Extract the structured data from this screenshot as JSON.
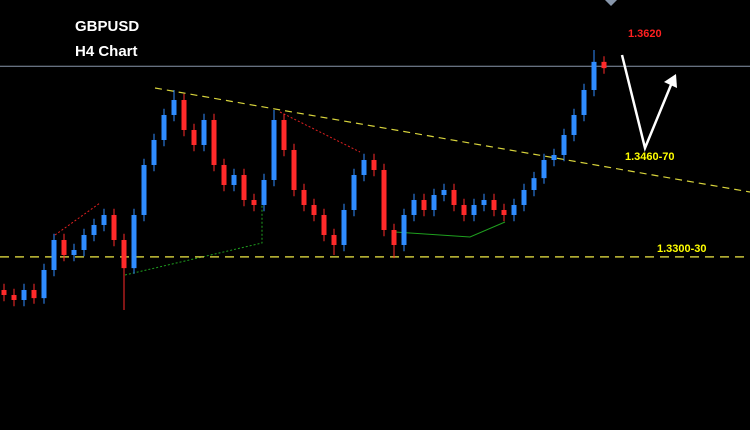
{
  "chart_data": {
    "type": "candlestick",
    "title": "GBPUSD",
    "subtitle": "H4 Chart",
    "ylim": [
      1.3038,
      1.3726
    ],
    "up_color": "#2f8cff",
    "down_color": "#ff2a2a",
    "open": [
      1.3262,
      1.3254,
      1.3246,
      1.3262,
      1.3249,
      1.3294,
      1.3342,
      1.3318,
      1.3326,
      1.335,
      1.3366,
      1.3382,
      1.3342,
      1.3297,
      1.3382,
      1.3462,
      1.3502,
      1.3542,
      1.3566,
      1.3518,
      1.3494,
      1.3534,
      1.3462,
      1.343,
      1.3446,
      1.3406,
      1.3398,
      1.3438,
      1.3534,
      1.3486,
      1.3422,
      1.3398,
      1.3382,
      1.335,
      1.3334,
      1.339,
      1.3446,
      1.347,
      1.3454,
      1.3358,
      1.3334,
      1.3382,
      1.3406,
      1.339,
      1.3414,
      1.3422,
      1.3398,
      1.3382,
      1.3398,
      1.3406,
      1.339,
      1.3382,
      1.3398,
      1.3422,
      1.3441,
      1.347,
      1.3478,
      1.351,
      1.3542,
      1.3582,
      1.3627
    ],
    "high": [
      1.3272,
      1.3264,
      1.3272,
      1.3272,
      1.3304,
      1.3352,
      1.3352,
      1.3336,
      1.336,
      1.3376,
      1.3392,
      1.3392,
      1.3352,
      1.3392,
      1.3472,
      1.3512,
      1.3552,
      1.3582,
      1.3576,
      1.3528,
      1.3544,
      1.3544,
      1.3472,
      1.3456,
      1.3456,
      1.3416,
      1.3448,
      1.355,
      1.3544,
      1.3496,
      1.3432,
      1.3408,
      1.3392,
      1.336,
      1.34,
      1.3456,
      1.348,
      1.348,
      1.3464,
      1.3368,
      1.3392,
      1.3416,
      1.3416,
      1.3424,
      1.3432,
      1.3432,
      1.3408,
      1.3408,
      1.3416,
      1.3416,
      1.34,
      1.3408,
      1.3432,
      1.3451,
      1.348,
      1.3488,
      1.352,
      1.3552,
      1.3592,
      1.3646,
      1.3636
    ],
    "low": [
      1.3244,
      1.3236,
      1.3236,
      1.324,
      1.324,
      1.3284,
      1.3308,
      1.3308,
      1.3316,
      1.334,
      1.3356,
      1.3332,
      1.323,
      1.3288,
      1.3372,
      1.3452,
      1.3492,
      1.3532,
      1.3508,
      1.3484,
      1.3484,
      1.3452,
      1.342,
      1.342,
      1.3396,
      1.3388,
      1.3388,
      1.3428,
      1.3476,
      1.3412,
      1.3388,
      1.3372,
      1.334,
      1.3318,
      1.3324,
      1.338,
      1.3436,
      1.3444,
      1.3348,
      1.3313,
      1.3324,
      1.3372,
      1.338,
      1.338,
      1.3404,
      1.3388,
      1.3372,
      1.3372,
      1.3388,
      1.338,
      1.3372,
      1.3372,
      1.3388,
      1.3412,
      1.3432,
      1.346,
      1.3468,
      1.35,
      1.3532,
      1.3572,
      1.3608
    ],
    "close": [
      1.3254,
      1.3246,
      1.3262,
      1.3249,
      1.3294,
      1.3342,
      1.3318,
      1.3326,
      1.335,
      1.3366,
      1.3382,
      1.3342,
      1.3297,
      1.3382,
      1.3462,
      1.3502,
      1.3542,
      1.3566,
      1.3518,
      1.3494,
      1.3534,
      1.3462,
      1.343,
      1.3446,
      1.3406,
      1.3398,
      1.3438,
      1.3534,
      1.3486,
      1.3422,
      1.3398,
      1.3382,
      1.335,
      1.3334,
      1.339,
      1.3446,
      1.347,
      1.3454,
      1.3358,
      1.3334,
      1.3382,
      1.3406,
      1.339,
      1.3414,
      1.3422,
      1.3398,
      1.3382,
      1.3398,
      1.3406,
      1.339,
      1.3382,
      1.3398,
      1.3422,
      1.3441,
      1.347,
      1.3478,
      1.351,
      1.3542,
      1.3582,
      1.3627,
      1.3617
    ],
    "levels": [
      {
        "value": 1.362,
        "label": "1.3620",
        "color": "#ff2020",
        "line": "solid",
        "line_color": "#8796aa"
      },
      {
        "value": 1.3465,
        "label": "1.3460-70",
        "color": "#ffff00"
      },
      {
        "value": 1.3315,
        "label": "1.3300-30",
        "color": "#ffff00",
        "line": "dashed",
        "line_color": "#c8c23a"
      }
    ]
  }
}
